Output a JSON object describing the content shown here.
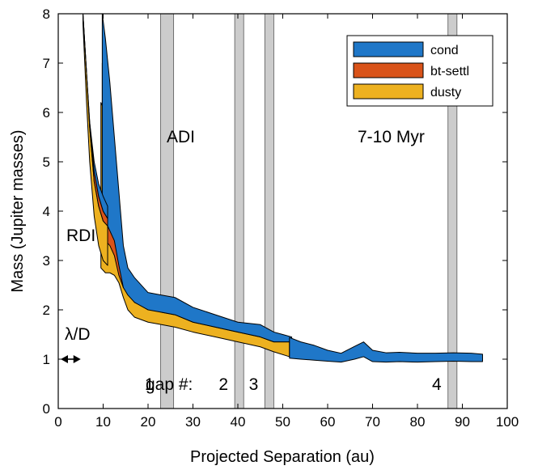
{
  "chart_data": {
    "type": "area",
    "xlabel": "Projected Separation (au)",
    "ylabel": "Mass (Jupiter masses)",
    "xlim": [
      0,
      100
    ],
    "ylim": [
      0,
      8
    ],
    "xticks": [
      0,
      10,
      20,
      30,
      40,
      50,
      60,
      70,
      80,
      90,
      100
    ],
    "yticks": [
      0,
      1,
      2,
      3,
      4,
      5,
      6,
      7,
      8
    ],
    "grid": false,
    "legend": {
      "placement": "top-right",
      "entries": [
        "cond",
        "bt-settl",
        "dusty"
      ]
    },
    "gap_bands": [
      {
        "label": "1",
        "x": [
          22.8,
          25.7
        ]
      },
      {
        "label": "2",
        "x": [
          39.3,
          41.3
        ]
      },
      {
        "label": "3",
        "x": [
          46.0,
          48.0
        ]
      },
      {
        "label": "4",
        "x": [
          86.8,
          88.8
        ]
      }
    ],
    "gap_label_prefix": "gap #:",
    "annotations": {
      "adi": "ADI",
      "rdi": "RDI",
      "age": "7-10 Myr",
      "resolution": "λ/D",
      "resolution_span": [
        0,
        5
      ]
    },
    "series": [
      {
        "name": "cond",
        "color": "#1f77c8",
        "regions": [
          {
            "upper": [
              [
                9.8,
                8.0
              ],
              [
                10.5,
                7.5
              ],
              [
                11.5,
                6.6
              ],
              [
                12.5,
                5.5
              ],
              [
                13.5,
                4.4
              ],
              [
                14.5,
                3.3
              ],
              [
                15.5,
                2.85
              ],
              [
                17,
                2.65
              ],
              [
                20,
                2.35
              ],
              [
                23,
                2.3
              ],
              [
                26,
                2.25
              ],
              [
                30,
                2.05
              ],
              [
                35,
                1.9
              ],
              [
                40,
                1.75
              ],
              [
                45,
                1.7
              ],
              [
                48,
                1.55
              ],
              [
                50,
                1.5
              ],
              [
                52,
                1.45
              ]
            ],
            "lower": [
              [
                9.8,
                4.1
              ],
              [
                10.5,
                3.8
              ],
              [
                11.5,
                3.6
              ],
              [
                12.5,
                3.4
              ],
              [
                13.5,
                2.9
              ],
              [
                14.5,
                2.45
              ],
              [
                15.5,
                2.3
              ],
              [
                17,
                2.15
              ],
              [
                20,
                2.0
              ],
              [
                23,
                1.95
              ],
              [
                26,
                1.9
              ],
              [
                30,
                1.75
              ],
              [
                35,
                1.65
              ],
              [
                40,
                1.55
              ],
              [
                45,
                1.45
              ],
              [
                48,
                1.35
              ],
              [
                50,
                1.35
              ],
              [
                52,
                1.35
              ]
            ]
          },
          {
            "upper": [
              [
                51.5,
                1.44
              ],
              [
                54,
                1.35
              ],
              [
                57,
                1.28
              ],
              [
                60,
                1.18
              ],
              [
                63,
                1.12
              ],
              [
                66,
                1.26
              ],
              [
                68,
                1.35
              ],
              [
                70,
                1.18
              ],
              [
                73,
                1.13
              ],
              [
                76,
                1.14
              ],
              [
                80,
                1.12
              ],
              [
                84,
                1.12
              ],
              [
                88,
                1.13
              ],
              [
                92,
                1.12
              ],
              [
                94.5,
                1.1
              ]
            ],
            "lower": [
              [
                51.5,
                1.02
              ],
              [
                54,
                1.0
              ],
              [
                57,
                0.98
              ],
              [
                60,
                0.96
              ],
              [
                63,
                0.94
              ],
              [
                66,
                1.0
              ],
              [
                68,
                1.05
              ],
              [
                70,
                0.95
              ],
              [
                73,
                0.94
              ],
              [
                76,
                0.95
              ],
              [
                80,
                0.94
              ],
              [
                84,
                0.95
              ],
              [
                88,
                0.96
              ],
              [
                92,
                0.95
              ],
              [
                94.5,
                0.95
              ]
            ]
          }
        ]
      },
      {
        "name": "bt-settl",
        "color": "#d95319",
        "regions": [
          {
            "upper": [
              [
                9.8,
                7.0
              ],
              [
                10.5,
                6.9
              ],
              [
                11.5,
                6.4
              ],
              [
                12.5,
                5.2
              ],
              [
                13.5,
                4.1
              ],
              [
                14.5,
                3.0
              ]
            ],
            "lower": [
              [
                9.8,
                3.55
              ],
              [
                10.5,
                3.4
              ],
              [
                11.5,
                3.3
              ],
              [
                12.5,
                3.1
              ],
              [
                13.5,
                2.7
              ],
              [
                14.5,
                2.45
              ]
            ]
          }
        ]
      },
      {
        "name": "dusty",
        "color": "#edb120",
        "regions": [
          {
            "upper": [
              [
                9.5,
                6.2
              ],
              [
                10.5,
                6.0
              ],
              [
                11.5,
                5.5
              ],
              [
                12.5,
                4.7
              ],
              [
                13.5,
                3.8
              ],
              [
                14.5,
                2.7
              ],
              [
                15.5,
                2.35
              ],
              [
                17,
                2.15
              ],
              [
                20,
                2.05
              ],
              [
                23,
                1.95
              ],
              [
                26,
                1.9
              ],
              [
                30,
                1.75
              ],
              [
                35,
                1.65
              ],
              [
                40,
                1.55
              ],
              [
                45,
                1.45
              ],
              [
                48,
                1.35
              ],
              [
                51.5,
                1.35
              ]
            ],
            "lower": [
              [
                9.5,
                2.85
              ],
              [
                10.5,
                2.75
              ],
              [
                11.5,
                2.75
              ],
              [
                12.5,
                2.7
              ],
              [
                13.5,
                2.55
              ],
              [
                14.5,
                2.25
              ],
              [
                15.5,
                2.0
              ],
              [
                17,
                1.85
              ],
              [
                20,
                1.75
              ],
              [
                23,
                1.7
              ],
              [
                26,
                1.65
              ],
              [
                30,
                1.55
              ],
              [
                35,
                1.45
              ],
              [
                40,
                1.35
              ],
              [
                45,
                1.25
              ],
              [
                48,
                1.15
              ],
              [
                51.5,
                1.05
              ]
            ]
          }
        ]
      },
      {
        "name": "",
        "color": "#1f77c8",
        "regions": [
          {
            "upper": [
              [
                5.5,
                8.0
              ],
              [
                6.3,
                6.8
              ],
              [
                7,
                5.8
              ],
              [
                8,
                5.0
              ],
              [
                9,
                4.55
              ],
              [
                10,
                4.3
              ],
              [
                11,
                4.1
              ]
            ],
            "lower": [
              [
                5.5,
                8.0
              ],
              [
                6.3,
                6.8
              ],
              [
                7,
                5.8
              ],
              [
                8,
                4.8
              ],
              [
                9,
                4.3
              ],
              [
                10,
                4.0
              ],
              [
                11,
                3.85
              ]
            ]
          }
        ]
      },
      {
        "name": "",
        "color": "#d95319",
        "regions": [
          {
            "upper": [
              [
                5.5,
                8.0
              ],
              [
                6.3,
                6.8
              ],
              [
                7,
                5.8
              ],
              [
                8,
                4.8
              ],
              [
                9,
                4.3
              ],
              [
                10,
                4.0
              ],
              [
                11,
                3.85
              ]
            ],
            "lower": [
              [
                5.5,
                8.0
              ],
              [
                6.3,
                6.8
              ],
              [
                7,
                5.7
              ],
              [
                8,
                4.6
              ],
              [
                9,
                4.1
              ],
              [
                10,
                3.8
              ],
              [
                11,
                3.7
              ]
            ]
          }
        ]
      },
      {
        "name": "",
        "color": "#edb120",
        "regions": [
          {
            "upper": [
              [
                5.5,
                8.0
              ],
              [
                6.3,
                6.8
              ],
              [
                7,
                5.7
              ],
              [
                8,
                4.6
              ],
              [
                9,
                4.1
              ],
              [
                10,
                3.8
              ],
              [
                11,
                3.7
              ]
            ],
            "lower": [
              [
                5.5,
                7.8
              ],
              [
                6.3,
                6.2
              ],
              [
                7,
                5.0
              ],
              [
                8,
                3.9
              ],
              [
                9,
                3.3
              ],
              [
                10,
                3.0
              ],
              [
                11,
                2.9
              ]
            ]
          }
        ]
      }
    ]
  }
}
